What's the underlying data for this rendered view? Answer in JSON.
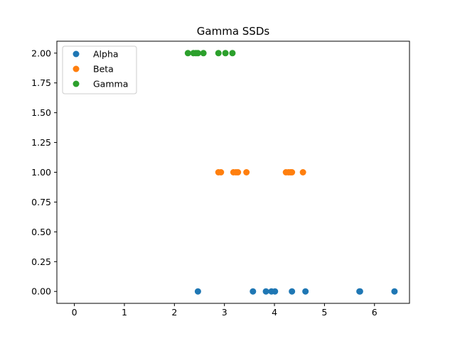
{
  "chart_data": {
    "type": "scatter",
    "title": "Gamma SSDs",
    "xlabel": "",
    "ylabel": "",
    "xlim": [
      -0.35,
      6.7
    ],
    "ylim": [
      -0.1,
      2.1
    ],
    "xticks": [
      0,
      1,
      2,
      3,
      4,
      5,
      6
    ],
    "xtick_labels": [
      "0",
      "1",
      "2",
      "3",
      "4",
      "5",
      "6"
    ],
    "yticks": [
      0,
      0.25,
      0.5,
      0.75,
      1.0,
      1.25,
      1.5,
      1.75,
      2.0
    ],
    "ytick_labels": [
      "0.00",
      "0.25",
      "0.50",
      "0.75",
      "1.00",
      "1.25",
      "1.50",
      "1.75",
      "2.00"
    ],
    "grid": false,
    "legend_position": "top-left",
    "series": [
      {
        "name": "Alpha",
        "color": "#1f77b4",
        "points": [
          [
            2.47,
            0
          ],
          [
            3.57,
            0
          ],
          [
            3.83,
            0
          ],
          [
            3.94,
            0
          ],
          [
            4.01,
            0
          ],
          [
            4.35,
            0
          ],
          [
            4.62,
            0
          ],
          [
            5.7,
            0
          ],
          [
            5.71,
            0
          ],
          [
            6.4,
            0
          ]
        ]
      },
      {
        "name": "Beta",
        "color": "#ff7f0e",
        "points": [
          [
            2.88,
            1
          ],
          [
            2.93,
            1
          ],
          [
            3.18,
            1
          ],
          [
            3.23,
            1
          ],
          [
            3.27,
            1
          ],
          [
            3.44,
            1
          ],
          [
            4.23,
            1
          ],
          [
            4.28,
            1
          ],
          [
            4.32,
            1
          ],
          [
            4.35,
            1
          ],
          [
            4.57,
            1
          ]
        ]
      },
      {
        "name": "Gamma",
        "color": "#2ca02c",
        "points": [
          [
            2.27,
            2
          ],
          [
            2.38,
            2
          ],
          [
            2.43,
            2
          ],
          [
            2.47,
            2
          ],
          [
            2.58,
            2
          ],
          [
            2.88,
            2
          ],
          [
            3.02,
            2
          ],
          [
            3.16,
            2
          ]
        ]
      }
    ]
  }
}
